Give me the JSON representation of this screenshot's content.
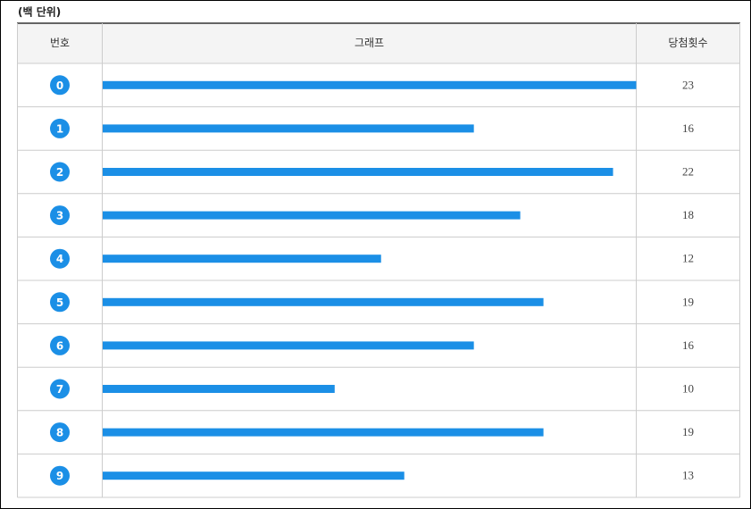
{
  "chart_data": {
    "type": "bar",
    "title": "(백 단위)",
    "columns": [
      "번호",
      "그래프",
      "당첨횟수"
    ],
    "categories": [
      "0",
      "1",
      "2",
      "3",
      "4",
      "5",
      "6",
      "7",
      "8",
      "9"
    ],
    "values": [
      23,
      16,
      22,
      18,
      12,
      19,
      16,
      10,
      19,
      13
    ],
    "color": "#1b8fe6"
  }
}
